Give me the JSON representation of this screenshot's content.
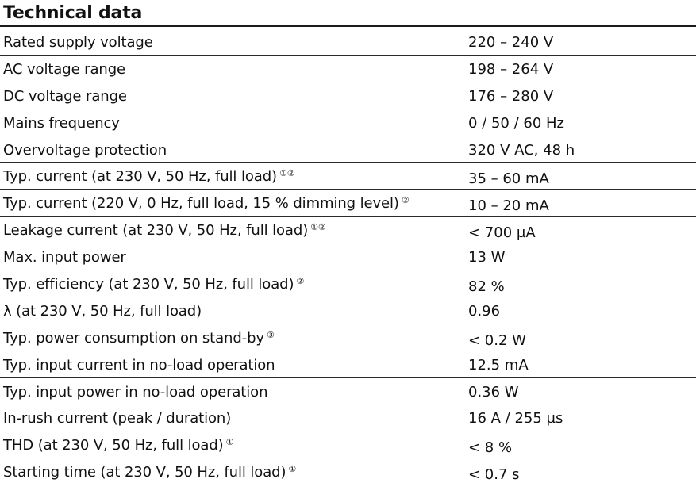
{
  "title": "Technical data",
  "rows": [
    {
      "label": "Rated supply voltage",
      "note": "",
      "value": "220 – 240 V"
    },
    {
      "label": "AC voltage range",
      "note": "",
      "value": "198 – 264 V"
    },
    {
      "label": "DC voltage range",
      "note": "",
      "value": "176 – 280 V"
    },
    {
      "label": "Mains frequency",
      "note": "",
      "value": "0 / 50 / 60 Hz"
    },
    {
      "label": "Overvoltage protection",
      "note": "",
      "value": "320 V AC, 48 h"
    },
    {
      "label": "Typ. current (at 230 V, 50 Hz, full load)",
      "note": "①②",
      "value": "35 – 60 mA"
    },
    {
      "label": "Typ. current (220 V, 0 Hz, full load, 15 % dimming level)",
      "note": "②",
      "value": "10 – 20 mA"
    },
    {
      "label": "Leakage current (at 230 V, 50 Hz, full load)",
      "note": "①②",
      "value": "< 700 µA"
    },
    {
      "label": "Max. input power",
      "note": "",
      "value": "13 W"
    },
    {
      "label": "Typ. efficiency (at 230 V, 50 Hz, full load)",
      "note": "②",
      "value": "82 %"
    },
    {
      "label": "λ (at 230 V, 50 Hz, full load)",
      "note": "",
      "value": "0.96"
    },
    {
      "label": "Typ. power consumption on stand-by",
      "note": "③",
      "value": "< 0.2 W"
    },
    {
      "label": "Typ. input current in no-load operation",
      "note": "",
      "value": "12.5 mA"
    },
    {
      "label": "Typ. input power in no-load operation",
      "note": "",
      "value": "0.36 W"
    },
    {
      "label": "In-rush current (peak / duration)",
      "note": "",
      "value": "16 A / 255 µs"
    },
    {
      "label": "THD (at 230 V, 50 Hz, full load)",
      "note": "①",
      "value": "< 8 %"
    },
    {
      "label": "Starting time (at 230 V, 50 Hz, full load)",
      "note": "①",
      "value": "< 0.7 s"
    }
  ]
}
